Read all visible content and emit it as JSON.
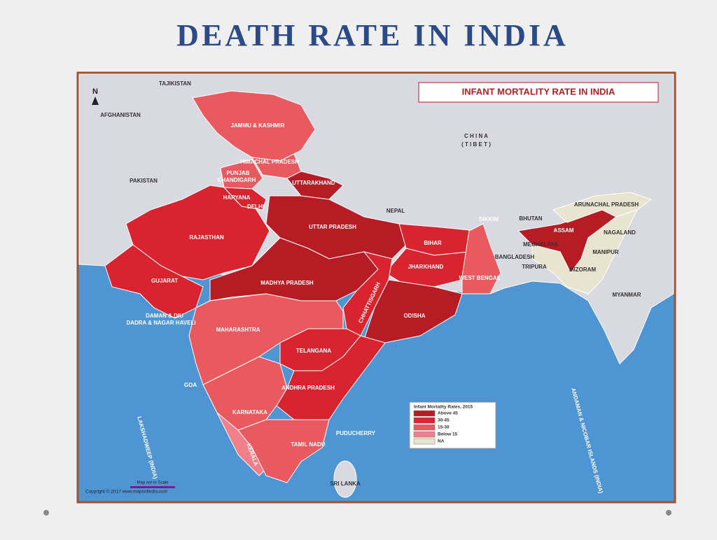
{
  "title": "DEATH RATE IN INDIA",
  "map": {
    "title": "INFANT MORTALITY RATE IN INDIA",
    "north": "N",
    "labels": [
      "TAJIKISTAN",
      "AFGHANISTAN",
      "PAKISTAN",
      "C H I N A",
      "( T I B E T )",
      "NEPAL",
      "BHUTAN",
      "BANGLADESH",
      "MYANMAR",
      "SRI LANKA",
      "JAMMU & KASHMIR",
      "HIMACHAL PRADESH",
      "PUNJAB",
      "CHANDIGARH",
      "UTTARAKHAND",
      "HARYANA",
      "DELHI",
      "RAJASTHAN",
      "UTTAR PRADESH",
      "BIHAR",
      "SIKKIM",
      "ASSAM",
      "ARUNACHAL PRADESH",
      "NAGALAND",
      "MEGHALAYA",
      "MANIPUR",
      "TRIPURA",
      "MIZORAM",
      "WEST BENGAL",
      "JHARKHAND",
      "GUJARAT",
      "MADHYA PRADESH",
      "CHHATTISGARH",
      "ODISHA",
      "DAMAN & DIU",
      "DADRA & NAGAR HAVELI",
      "MAHARASHTRA",
      "TELANGANA",
      "GOA",
      "ANDHRA PRADESH",
      "KARNATAKA",
      "PUDUCHERRY",
      "KERALA",
      "TAMIL NADU",
      "LAKSHADWEEP (INDIA)",
      "ANDAMAN & NICOBAR ISLANDS (INDIA)"
    ],
    "legend": {
      "title": "Infant Mortality Rates, 2015",
      "items": [
        "Above 45",
        "30-45",
        "15-30",
        "Below 15",
        "NA"
      ]
    },
    "scale_note": "Map not to Scale",
    "copyright": "Copyright © 2017 www.mapsofindia.com"
  }
}
